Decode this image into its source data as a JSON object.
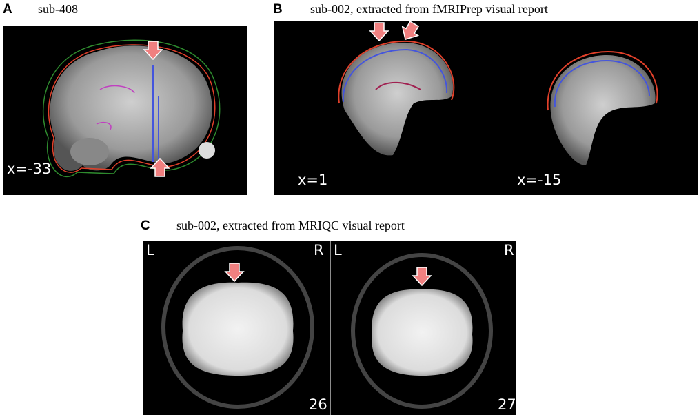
{
  "panels": [
    {
      "label": "A",
      "caption": "sub-408",
      "images": [
        {
          "coord": "x=-33"
        }
      ]
    },
    {
      "label": "B",
      "caption": "sub-002, extracted from fMRIPrep visual report",
      "images": [
        {
          "coord": "x=1"
        },
        {
          "coord": "x=-15"
        }
      ]
    },
    {
      "label": "C",
      "caption": "sub-002, extracted from MRIQC visual report",
      "images": [
        {
          "left": "L",
          "right": "R",
          "slice": "26"
        },
        {
          "left": "L",
          "right": "R",
          "slice": "27"
        }
      ]
    }
  ]
}
